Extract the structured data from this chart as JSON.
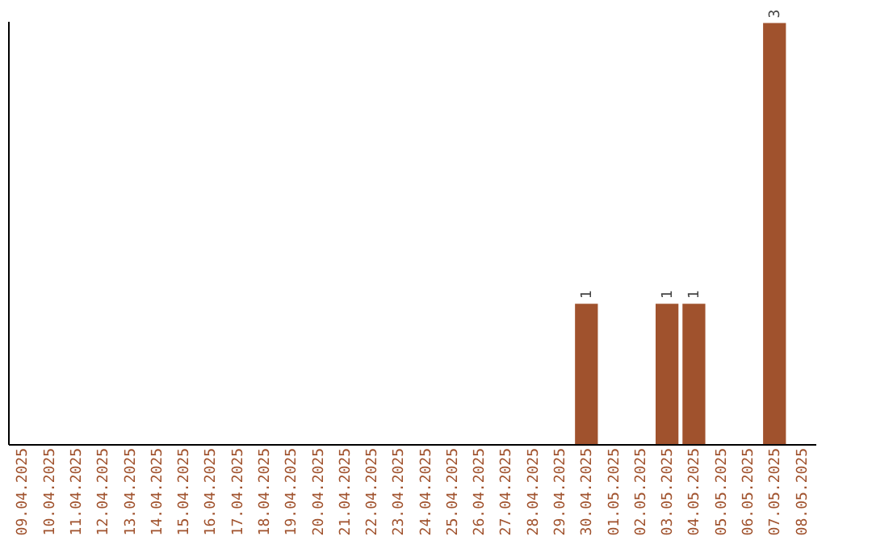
{
  "chart_data": {
    "type": "bar",
    "categories": [
      "09.04.2025",
      "10.04.2025",
      "11.04.2025",
      "12.04.2025",
      "13.04.2025",
      "14.04.2025",
      "15.04.2025",
      "16.04.2025",
      "17.04.2025",
      "18.04.2025",
      "19.04.2025",
      "20.04.2025",
      "21.04.2025",
      "22.04.2025",
      "23.04.2025",
      "24.04.2025",
      "25.04.2025",
      "26.04.2025",
      "27.04.2025",
      "28.04.2025",
      "29.04.2025",
      "30.04.2025",
      "01.05.2025",
      "02.05.2025",
      "03.05.2025",
      "04.05.2025",
      "05.05.2025",
      "06.05.2025",
      "07.05.2025",
      "08.05.2025"
    ],
    "values": [
      null,
      null,
      null,
      null,
      null,
      null,
      null,
      null,
      null,
      null,
      null,
      null,
      null,
      null,
      null,
      null,
      null,
      null,
      null,
      null,
      null,
      1,
      null,
      null,
      1,
      1,
      null,
      null,
      3,
      null
    ],
    "data_labels": true,
    "color": "#a0522d",
    "grid": false
  }
}
